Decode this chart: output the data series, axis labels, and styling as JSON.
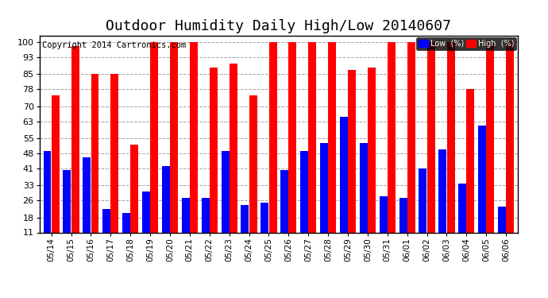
{
  "title": "Outdoor Humidity Daily High/Low 20140607",
  "copyright": "Copyright 2014 Cartronics.com",
  "categories": [
    "05/14",
    "05/15",
    "05/16",
    "05/17",
    "05/18",
    "05/19",
    "05/20",
    "05/21",
    "05/22",
    "05/23",
    "05/24",
    "05/25",
    "05/26",
    "05/27",
    "05/28",
    "05/29",
    "05/30",
    "05/31",
    "06/01",
    "06/02",
    "06/03",
    "06/04",
    "06/05",
    "06/06"
  ],
  "high_values": [
    75,
    98,
    85,
    85,
    52,
    100,
    100,
    100,
    88,
    90,
    75,
    100,
    100,
    100,
    100,
    87,
    88,
    100,
    100,
    100,
    100,
    78,
    100,
    100
  ],
  "low_values": [
    49,
    40,
    46,
    22,
    20,
    30,
    42,
    27,
    27,
    49,
    24,
    25,
    40,
    49,
    53,
    65,
    53,
    28,
    27,
    41,
    50,
    34,
    61,
    23
  ],
  "bar_color_high": "#FF0000",
  "bar_color_low": "#0000FF",
  "bg_color": "#FFFFFF",
  "grid_color": "#999999",
  "yticks": [
    11,
    18,
    26,
    33,
    41,
    48,
    55,
    63,
    70,
    78,
    85,
    93,
    100
  ],
  "ymin": 11,
  "ymax": 103,
  "legend_low_label": "Low  (%)",
  "legend_high_label": "High  (%)",
  "title_fontsize": 13,
  "copyright_fontsize": 7.5,
  "bar_bottom": 11
}
